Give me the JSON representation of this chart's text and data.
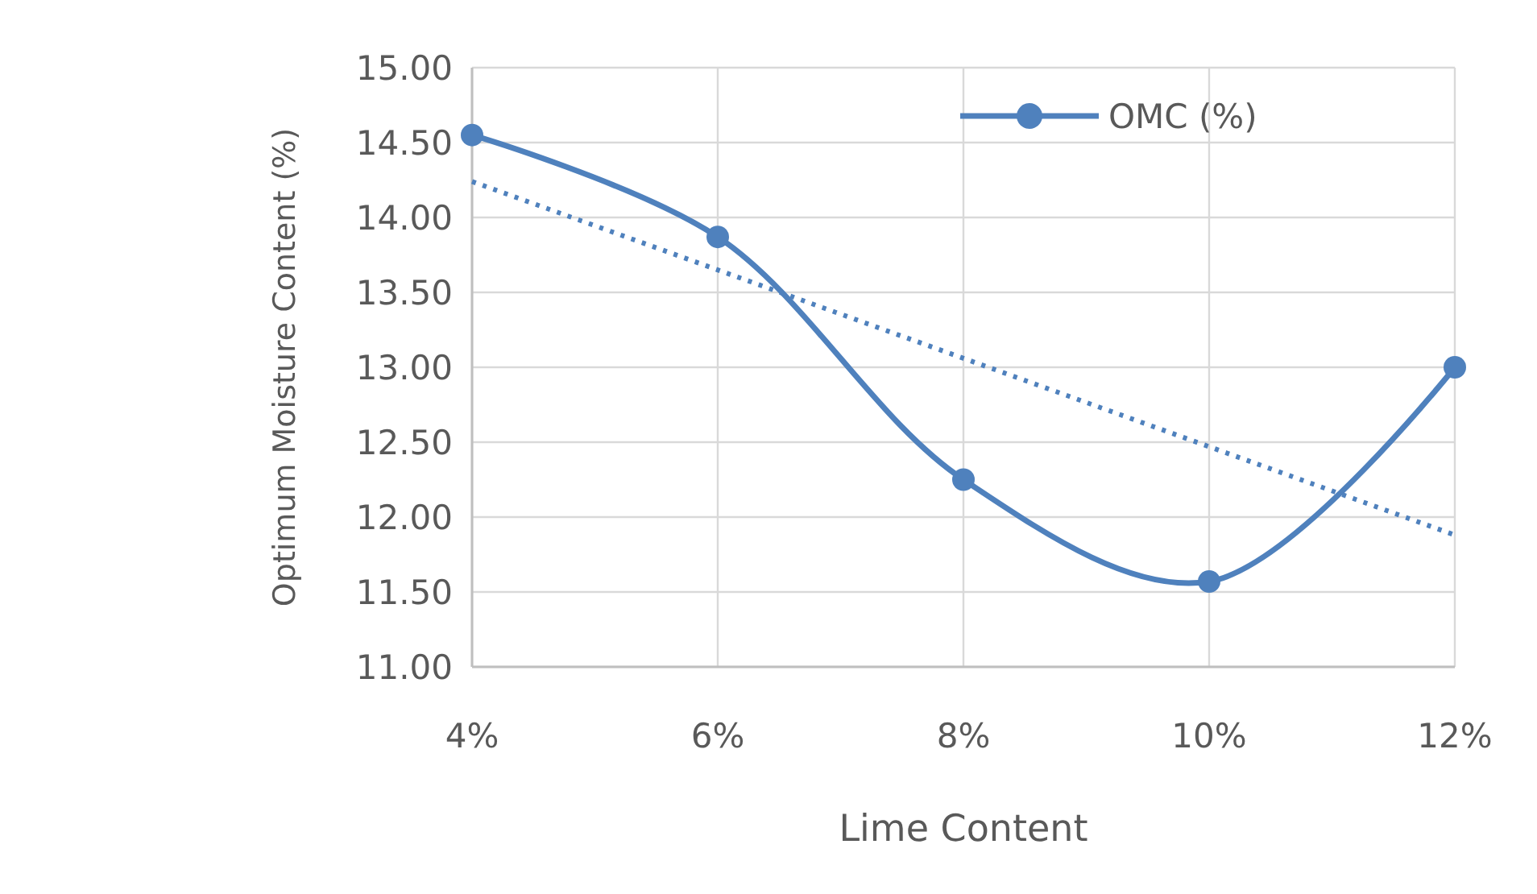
{
  "chart_data": {
    "type": "line",
    "xlabel": "Lime Content",
    "ylabel": "Optimum Moisture Content (%)",
    "x": [
      4,
      6,
      8,
      10,
      12
    ],
    "series": [
      {
        "name": "OMC (%)",
        "color": "#4f81bd",
        "values": [
          14.55,
          13.87,
          12.25,
          11.57,
          13.0
        ],
        "marker": "circle",
        "line_style": "solid"
      },
      {
        "type": "line",
        "color": "#4f81bd",
        "x": [
          4,
          12
        ],
        "values": [
          14.24,
          11.88
        ],
        "marker": "none",
        "line_style": "dotted"
      }
    ],
    "xlim": [
      4,
      12
    ],
    "xticks": [
      {
        "value": 4,
        "label": "4%"
      },
      {
        "value": 6,
        "label": "6%"
      },
      {
        "value": 8,
        "label": "8%"
      },
      {
        "value": 10,
        "label": "10%"
      },
      {
        "value": 12,
        "label": "12%"
      }
    ],
    "ylim": [
      11,
      15
    ],
    "yticks": [
      {
        "value": 11,
        "label": "11.00"
      },
      {
        "value": 11.5,
        "label": "11.50"
      },
      {
        "value": 12,
        "label": "12.00"
      },
      {
        "value": 12.5,
        "label": "12.50"
      },
      {
        "value": 13,
        "label": "13.00"
      },
      {
        "value": 13.5,
        "label": "13.50"
      },
      {
        "value": 14,
        "label": "14.00"
      },
      {
        "value": 14.5,
        "label": "14.50"
      },
      {
        "value": 15,
        "label": "15.00"
      }
    ],
    "grid": true,
    "legend": "top right"
  }
}
